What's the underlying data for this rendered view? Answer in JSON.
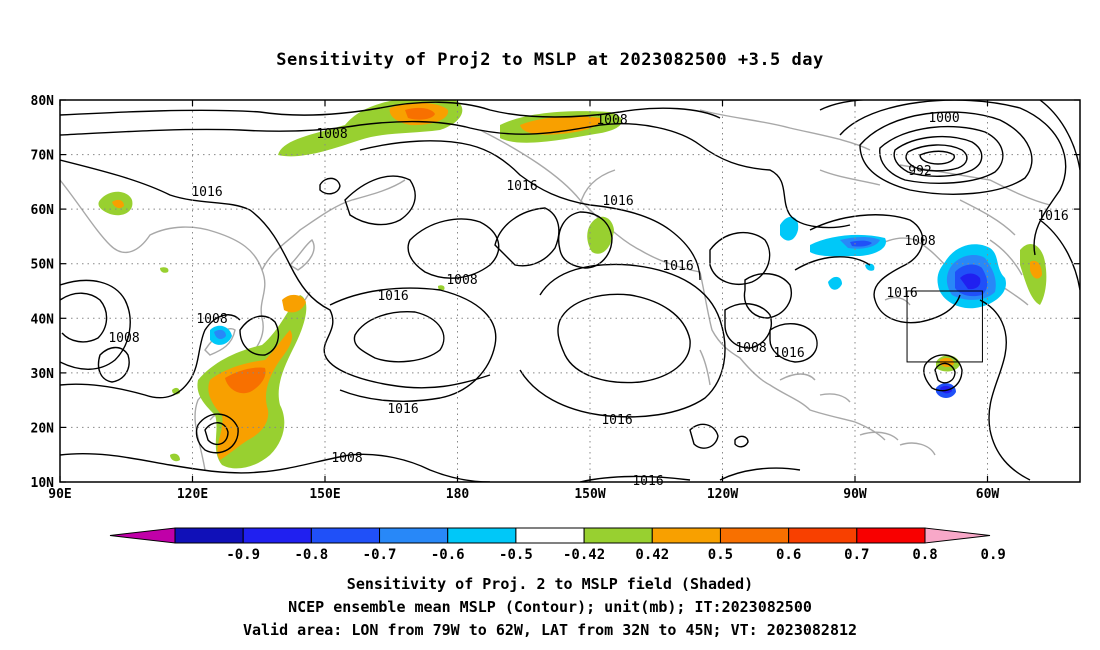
{
  "title": "Sensitivity of Proj2 to MSLP at 2023082500 +3.5 day",
  "lat_ticks": [
    "80N",
    "70N",
    "60N",
    "50N",
    "40N",
    "30N",
    "20N",
    "10N"
  ],
  "lon_ticks": [
    "90E",
    "120E",
    "150E",
    "180",
    "150W",
    "120W",
    "90W",
    "60W"
  ],
  "contour_labels": [
    "1008",
    "1008",
    "1016",
    "1016",
    "1016",
    "1016",
    "1016",
    "1008",
    "1008",
    "1016",
    "1008",
    "1008",
    "1016",
    "1016",
    "1008",
    "1016",
    "1008",
    "1000",
    "992",
    "1016",
    "1016"
  ],
  "colorbar": {
    "labels": [
      "-0.9",
      "-0.8",
      "-0.7",
      "-0.6",
      "-0.5",
      "-0.42",
      "0.42",
      "0.5",
      "0.6",
      "0.7",
      "0.8",
      "0.9"
    ],
    "colors": [
      "#c000a8",
      "#1010b8",
      "#2020f0",
      "#2050f8",
      "#2888f8",
      "#00c8f8",
      "#ffffff",
      "#98d030",
      "#f8a000",
      "#f87000",
      "#f84000",
      "#f80000",
      "#f8a8c8"
    ]
  },
  "valid_area_box": {
    "lon_west": -79,
    "lon_east": -62,
    "lat_south": 32,
    "lat_north": 45
  },
  "captions": [
    "Sensitivity of Proj. 2 to MSLP field (Shaded)",
    "NCEP ensemble mean MSLP (Contour); unit(mb); IT:2023082500",
    "Valid area: LON from 79W to 62W, LAT from 32N to 45N; VT: 2023082812"
  ]
}
